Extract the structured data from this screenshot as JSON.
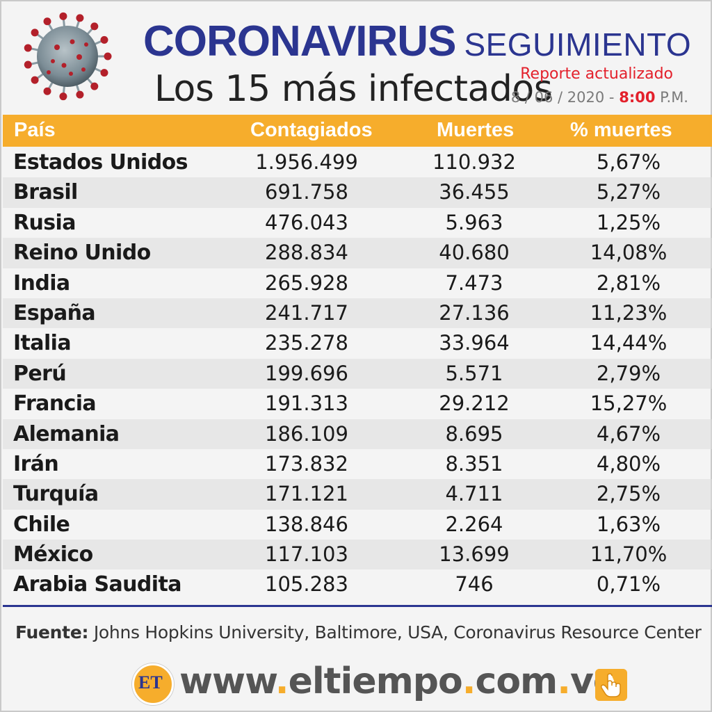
{
  "header": {
    "title_part1": "CORONAVIRUS",
    "title_part2": "SEGUIMIENTO",
    "subtitle": "Los 15 más infectados",
    "report_label": "Reporte actualizado",
    "report_date": "8 / 06 / 2020 -",
    "report_hour": "8:00",
    "report_period": "P.M."
  },
  "table": {
    "headers": {
      "country": "País",
      "cases": "Contagiados",
      "deaths": "Muertes",
      "pct": "% muertes"
    },
    "rows": [
      {
        "country": "Estados Unidos",
        "cases": "1.956.499",
        "deaths": "110.932",
        "pct": "5,67%"
      },
      {
        "country": "Brasil",
        "cases": "691.758",
        "deaths": "36.455",
        "pct": "5,27%"
      },
      {
        "country": "Rusia",
        "cases": "476.043",
        "deaths": "5.963",
        "pct": "1,25%"
      },
      {
        "country": "Reino Unido",
        "cases": "288.834",
        "deaths": "40.680",
        "pct": "14,08%"
      },
      {
        "country": "India",
        "cases": "265.928",
        "deaths": "7.473",
        "pct": "2,81%"
      },
      {
        "country": "España",
        "cases": "241.717",
        "deaths": "27.136",
        "pct": "11,23%"
      },
      {
        "country": "Italia",
        "cases": "235.278",
        "deaths": "33.964",
        "pct": "14,44%"
      },
      {
        "country": "Perú",
        "cases": "199.696",
        "deaths": "5.571",
        "pct": "2,79%"
      },
      {
        "country": "Francia",
        "cases": "191.313",
        "deaths": "29.212",
        "pct": "15,27%"
      },
      {
        "country": "Alemania",
        "cases": "186.109",
        "deaths": "8.695",
        "pct": "4,67%"
      },
      {
        "country": "Irán",
        "cases": "173.832",
        "deaths": "8.351",
        "pct": "4,80%"
      },
      {
        "country": "Turquía",
        "cases": "171.121",
        "deaths": "4.711",
        "pct": "2,75%"
      },
      {
        "country": "Chile",
        "cases": "138.846",
        "deaths": "2.264",
        "pct": "1,63%"
      },
      {
        "country": "México",
        "cases": "117.103",
        "deaths": "13.699",
        "pct": "11,70%"
      },
      {
        "country": "Arabia Saudita",
        "cases": "105.283",
        "deaths": "746",
        "pct": "0,71%"
      }
    ]
  },
  "source": {
    "label": "Fuente:",
    "text": "Johns Hopkins University, Baltimore, USA, Coronavirus Resource Center"
  },
  "footer": {
    "logo_text": "ET",
    "url_www": "www",
    "url_dot1": ".",
    "url_name": "eltiempo",
    "url_dot2": ".",
    "url_com": "com",
    "url_dot3": ".",
    "url_ve": "ve"
  },
  "icons": {
    "virus": "coronavirus-icon",
    "hand": "hand-pointer-icon"
  },
  "colors": {
    "title_blue": "#2b3590",
    "accent_orange": "#f6ad2c",
    "report_red": "#e3202b"
  }
}
